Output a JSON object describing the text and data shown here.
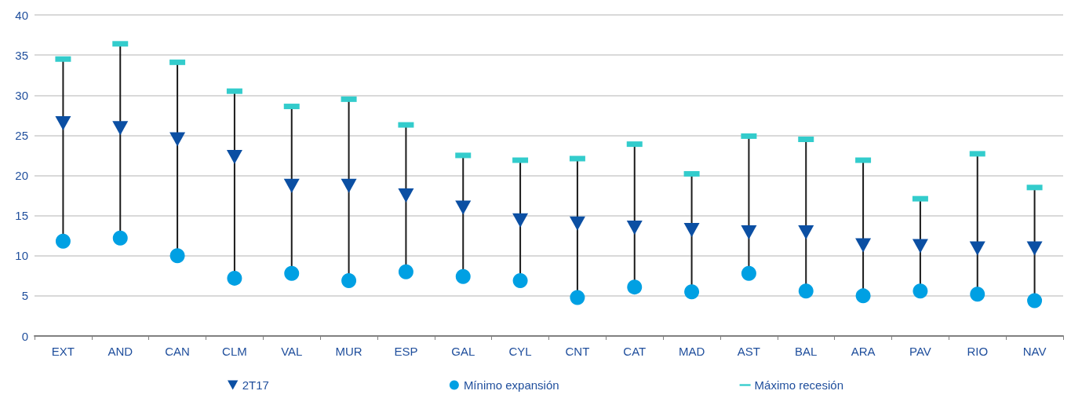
{
  "chart_data": {
    "type": "scatter",
    "categories": [
      "EXT",
      "AND",
      "CAN",
      "CLM",
      "VAL",
      "MUR",
      "ESP",
      "GAL",
      "CYL",
      "CNT",
      "CAT",
      "MAD",
      "AST",
      "BAL",
      "ARA",
      "PAV",
      "RIO",
      "NAV"
    ],
    "series": [
      {
        "name": "2T17",
        "color": "#0b4fa3",
        "marker": "triangle",
        "values": [
          26.5,
          25.9,
          24.5,
          22.3,
          18.7,
          18.7,
          17.5,
          16.0,
          14.4,
          14.0,
          13.5,
          13.2,
          12.9,
          12.9,
          11.3,
          11.2,
          10.9,
          10.9
        ]
      },
      {
        "name": "Mínimo expansión",
        "color": "#00a0e3",
        "marker": "circle",
        "values": [
          11.8,
          12.2,
          10.0,
          7.2,
          7.8,
          6.9,
          8.0,
          7.4,
          6.9,
          4.8,
          6.1,
          5.5,
          7.8,
          5.6,
          5.0,
          5.6,
          5.2,
          4.4
        ]
      },
      {
        "name": "Máximo recesión",
        "color": "#33cccc",
        "values": [
          34.5,
          36.4,
          34.1,
          30.5,
          28.6,
          29.5,
          26.3,
          22.5,
          21.9,
          22.1,
          23.9,
          20.2,
          24.9,
          24.5,
          21.9,
          17.1,
          22.7,
          18.5
        ]
      }
    ],
    "ylim": [
      0,
      40
    ],
    "yticks": [
      0,
      5,
      10,
      15,
      20,
      25,
      30,
      35,
      40
    ],
    "grid": "y",
    "legend": "bottom"
  }
}
